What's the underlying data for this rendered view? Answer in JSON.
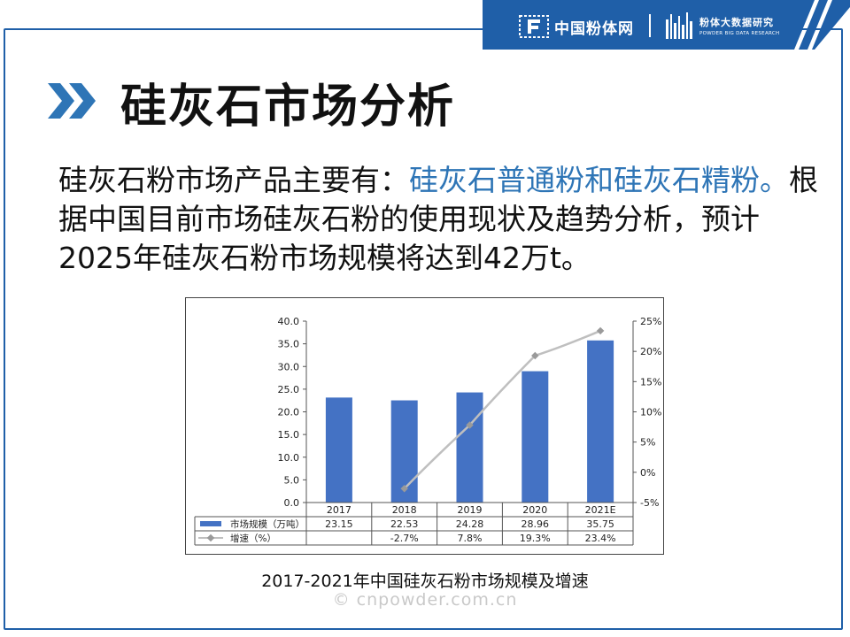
{
  "header": {
    "brand_primary": "中国粉体网",
    "brand_secondary_cn": "粉体大数据研究",
    "brand_secondary_en": "POWDER BIG DATA RESEARCH",
    "color": "#1f5fa8"
  },
  "slide": {
    "title": "硅灰石市场分析",
    "paragraph_pre": "硅灰石粉市场产品主要有：",
    "paragraph_highlight": "硅灰石普通粉和硅灰石精粉。",
    "paragraph_post": "根据中国目前市场硅灰石粉的使用现状及趋势分析，预计2025年硅灰石粉市场规模将达到42万t。",
    "highlight_color": "#2e75b6",
    "caption": "2017-2021年中国硅灰石粉市场规模及增速",
    "watermark": "© cnpowder.com.cn"
  },
  "chart_data": {
    "type": "bar",
    "categories": [
      "2017",
      "2018",
      "2019",
      "2020",
      "2021E"
    ],
    "series": [
      {
        "name": "市场规模（万吨）",
        "type": "bar",
        "axis": "left",
        "values": [
          23.15,
          22.53,
          24.28,
          28.96,
          35.75
        ],
        "labels": [
          "23.15",
          "22.53",
          "24.28",
          "28.96",
          "35.75"
        ],
        "color": "#4472c4"
      },
      {
        "name": "增速（%）",
        "type": "line",
        "axis": "right",
        "values": [
          null,
          -2.7,
          7.8,
          19.3,
          23.4
        ],
        "labels": [
          "",
          "-2.7%",
          "7.8%",
          "19.3%",
          "23.4%"
        ],
        "color": "#bfbfbf"
      }
    ],
    "left_axis": {
      "min": 0,
      "max": 40,
      "ticks": [
        "0.0",
        "5.0",
        "10.0",
        "15.0",
        "20.0",
        "25.0",
        "30.0",
        "35.0",
        "40.0"
      ]
    },
    "right_axis": {
      "min": -5,
      "max": 25,
      "ticks": [
        "-5%",
        "0%",
        "5%",
        "10%",
        "15%",
        "20%",
        "25%"
      ]
    },
    "data_table": true,
    "grid": false
  }
}
